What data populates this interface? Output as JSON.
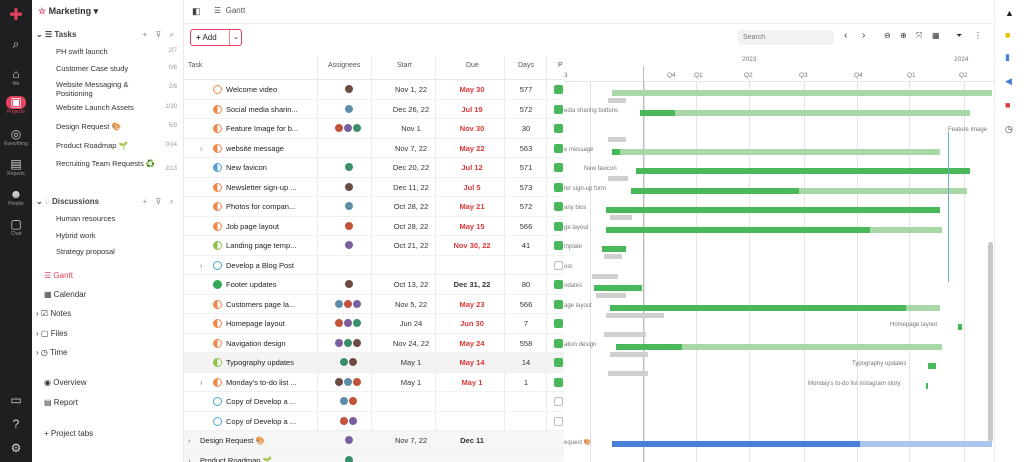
{
  "left_rail": {
    "items": [
      {
        "name": "home",
        "label": "Me"
      },
      {
        "name": "projects",
        "label": "Projects"
      },
      {
        "name": "everything",
        "label": "Everything"
      },
      {
        "name": "reports",
        "label": "Reports"
      },
      {
        "name": "people",
        "label": "People"
      },
      {
        "name": "chat",
        "label": "Chat"
      }
    ]
  },
  "sidebar": {
    "project": "Marketing",
    "tasks_header": "Tasks",
    "tasks": [
      {
        "label": "PH swift launch",
        "count": "2/7"
      },
      {
        "label": "Customer Case study",
        "count": "0/6"
      },
      {
        "label": "Website Messaging & Positioning",
        "count": "2/6"
      },
      {
        "label": "Website Launch Assets",
        "count": "1/30"
      },
      {
        "label": "Design Request 🎨",
        "count": "5/9"
      },
      {
        "label": "Product Roadmap 🌱",
        "count": "0/14"
      },
      {
        "label": "Recruiting Team Requests ♻️",
        "count": "2/13"
      }
    ],
    "discussions_header": "Discussions",
    "discussions": [
      "Human resources",
      "Hybrid work",
      "Strategy proposal"
    ],
    "views": [
      "Gantt",
      "Calendar",
      "Notes",
      "Files",
      "Time"
    ],
    "extra": [
      "Overview",
      "Report"
    ],
    "project_tabs": "+ Project tabs"
  },
  "topbar": {
    "view": "Gantt"
  },
  "toolbar": {
    "add_label": "Add",
    "search_placeholder": "Search"
  },
  "table": {
    "headers": {
      "task": "Task",
      "assignees": "Assignees",
      "start": "Start",
      "due": "Due",
      "days": "Days",
      "p": "P"
    },
    "rows": [
      {
        "name": "Welcome video",
        "start": "Nov 1, 22",
        "due": "May 30",
        "due_red": true,
        "days": "577"
      },
      {
        "name": "Social media sharin...",
        "start": "Dec 26, 22",
        "due": "Jul 19",
        "due_red": true,
        "days": "572"
      },
      {
        "name": "Feature Image for b...",
        "start": "Nov 1",
        "due": "Nov 30",
        "due_red": true,
        "days": "30"
      },
      {
        "name": "website message",
        "start": "Nov 7, 22",
        "due": "May 22",
        "due_red": true,
        "days": "563"
      },
      {
        "name": "New favicon",
        "start": "Dec 20, 22",
        "due": "Jul 12",
        "due_red": true,
        "days": "571"
      },
      {
        "name": "Newsletter sign-up ...",
        "start": "Dec 11, 22",
        "due": "Jul 5",
        "due_red": true,
        "days": "573"
      },
      {
        "name": "Photos for compan...",
        "start": "Oct 28, 22",
        "due": "May 21",
        "due_red": true,
        "days": "572"
      },
      {
        "name": "Job page layout",
        "start": "Oct 28, 22",
        "due": "May 15",
        "due_red": true,
        "days": "566"
      },
      {
        "name": "Landing page temp...",
        "start": "Oct 21, 22",
        "due": "Nov 30, 22",
        "due_red": true,
        "days": "41"
      },
      {
        "name": "Develop a Blog Post",
        "start": "",
        "due": "",
        "due_red": false,
        "days": ""
      },
      {
        "name": "Footer updates",
        "start": "Oct 13, 22",
        "due": "Dec 31, 22",
        "due_red": false,
        "days": "80"
      },
      {
        "name": "Customers page la...",
        "start": "Nov 5, 22",
        "due": "May 23",
        "due_red": true,
        "days": "566"
      },
      {
        "name": "Homepage layout",
        "start": "Jun 24",
        "due": "Jun 30",
        "due_red": true,
        "days": "7"
      },
      {
        "name": "Navigation design",
        "start": "Nov 24, 22",
        "due": "May 24",
        "due_red": true,
        "days": "558"
      },
      {
        "name": "Typography updates",
        "start": "May 1",
        "due": "May 14",
        "due_red": true,
        "days": "14"
      },
      {
        "name": "Monday's to-do list ...",
        "start": "May 1",
        "due": "May 1",
        "due_red": true,
        "days": "1"
      },
      {
        "name": "Copy of Develop a ...",
        "start": "",
        "due": "",
        "due_red": false,
        "days": ""
      },
      {
        "name": "Copy of Develop a ...",
        "start": "",
        "due": "",
        "due_red": false,
        "days": ""
      },
      {
        "name": "Design Request 🎨",
        "start": "Nov 7, 22",
        "due": "Dec 11",
        "due_red": false,
        "days": ""
      },
      {
        "name": "Product Roadmap 🌱",
        "start": "",
        "due": "",
        "due_red": false,
        "days": ""
      }
    ]
  },
  "gantt": {
    "years": [
      {
        "label": "2023"
      },
      {
        "label": "2024"
      }
    ],
    "quarters": [
      "3",
      "Q4",
      "Q1",
      "Q2",
      "Q3",
      "Q4",
      "Q1",
      "Q2",
      "Q3"
    ],
    "labels": [
      "edia sharing buttons",
      "Feature Image",
      "e message",
      "New favicon",
      "ter sign-up form",
      "any bios",
      "ge layout",
      "mplate",
      "ost",
      "odates",
      "age layout",
      "Homepage layout",
      "ation design",
      "Typography updates",
      "Monday's to-do list instagram story",
      "equest 🎨"
    ]
  },
  "colors": {
    "accent": "#e4405f",
    "green": "#48b85a",
    "light_green": "#a8d8a8",
    "blue": "#4a7fd8",
    "red": "#d9383a"
  }
}
